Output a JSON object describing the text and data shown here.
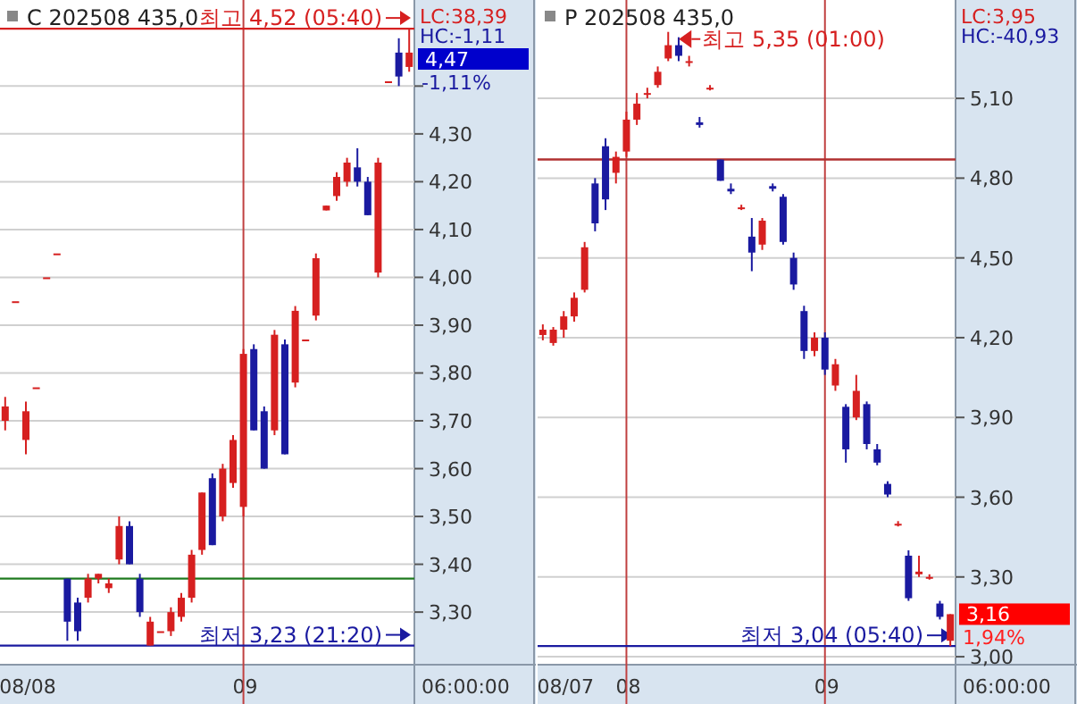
{
  "chart_data": [
    {
      "type": "candlestick",
      "title": "C 202508 435,0",
      "categories": [
        null,
        null,
        "08/08",
        null,
        null,
        null,
        null,
        null,
        null,
        null,
        null,
        null,
        null,
        null,
        null,
        null,
        null,
        null,
        null,
        null,
        null,
        null,
        null,
        "09",
        null,
        null,
        null,
        null,
        null,
        null,
        null,
        null,
        null,
        null,
        null,
        null,
        null,
        null,
        null,
        null
      ],
      "ohlc": [
        [
          3.7,
          3.75,
          3.68,
          3.73
        ],
        [
          3.95,
          3.95,
          3.95,
          3.95
        ],
        [
          3.66,
          3.74,
          3.63,
          3.72
        ],
        [
          3.77,
          3.77,
          3.77,
          3.77
        ],
        [
          4.0,
          4.0,
          4.0,
          4.0
        ],
        [
          4.05,
          4.05,
          4.05,
          4.05
        ],
        [
          3.37,
          3.37,
          3.24,
          3.28
        ],
        [
          3.32,
          3.33,
          3.24,
          3.26
        ],
        [
          3.33,
          3.38,
          3.32,
          3.37
        ],
        [
          3.37,
          3.38,
          3.36,
          3.38
        ],
        [
          3.35,
          3.37,
          3.34,
          3.36
        ],
        [
          3.41,
          3.5,
          3.4,
          3.48
        ],
        [
          3.48,
          3.49,
          3.4,
          3.4
        ],
        [
          3.37,
          3.38,
          3.29,
          3.3
        ],
        [
          3.23,
          3.29,
          3.23,
          3.28
        ],
        [
          3.26,
          3.26,
          3.26,
          3.26
        ],
        [
          3.26,
          3.31,
          3.25,
          3.3
        ],
        [
          3.29,
          3.34,
          3.28,
          3.33
        ],
        [
          3.33,
          3.43,
          3.32,
          3.42
        ],
        [
          3.43,
          3.55,
          3.42,
          3.55
        ],
        [
          3.58,
          3.59,
          3.44,
          3.44
        ],
        [
          3.5,
          3.61,
          3.49,
          3.6
        ],
        [
          3.57,
          3.67,
          3.56,
          3.66
        ],
        [
          3.52,
          3.85,
          3.5,
          3.84
        ],
        [
          3.85,
          3.86,
          3.68,
          3.68
        ],
        [
          3.72,
          3.73,
          3.6,
          3.6
        ],
        [
          3.68,
          3.89,
          3.67,
          3.88
        ],
        [
          3.86,
          3.87,
          3.63,
          3.63
        ],
        [
          3.78,
          3.94,
          3.77,
          3.93
        ],
        [
          3.87,
          3.87,
          3.87,
          3.87
        ],
        [
          3.92,
          4.05,
          3.91,
          4.04
        ],
        [
          4.14,
          4.15,
          4.14,
          4.15
        ],
        [
          4.17,
          4.22,
          4.16,
          4.21
        ],
        [
          4.2,
          4.25,
          4.19,
          4.24
        ],
        [
          4.23,
          4.27,
          4.19,
          4.2
        ],
        [
          4.2,
          4.21,
          4.13,
          4.13
        ],
        [
          4.01,
          4.25,
          4.0,
          4.24
        ],
        [
          4.41,
          4.41,
          4.41,
          4.41
        ],
        [
          4.47,
          4.5,
          4.4,
          4.42
        ],
        [
          4.44,
          4.52,
          4.43,
          4.47
        ]
      ],
      "ylim": [
        3.19,
        4.58
      ],
      "yticks": [
        {
          "value": 3.3,
          "label": "3,30"
        },
        {
          "value": 3.4,
          "label": "3,40"
        },
        {
          "value": 3.5,
          "label": "3,50"
        },
        {
          "value": 3.6,
          "label": "3,60"
        },
        {
          "value": 3.7,
          "label": "3,70"
        },
        {
          "value": 3.8,
          "label": "3,80"
        },
        {
          "value": 3.9,
          "label": "3,90"
        },
        {
          "value": 4.0,
          "label": "4,00"
        },
        {
          "value": 4.1,
          "label": "4,10"
        },
        {
          "value": 4.2,
          "label": "4,20"
        },
        {
          "value": 4.3,
          "label": "4,30"
        },
        {
          "value": 4.4,
          "label": null
        }
      ],
      "grid": "y",
      "ref_lines": [
        {
          "axis": "x",
          "value": "09",
          "color": "#c04040"
        },
        {
          "axis": "y",
          "value": 4.52,
          "label": "최고 4,52 (05:40)",
          "color": "#d62020"
        },
        {
          "axis": "y",
          "value": 3.37,
          "color": "#1f7a1f"
        },
        {
          "axis": "y",
          "value": 3.23,
          "label": "최저 3,23 (21:20)",
          "color": "#1a1aa0"
        }
      ],
      "annotations": [
        "LC:38,39",
        "HC:-1,11",
        "4,47",
        "-1,11%",
        "06:00:00"
      ]
    },
    {
      "type": "candlestick",
      "title": "P 202508 435,0",
      "categories": [
        null,
        null,
        "08/07",
        null,
        null,
        null,
        null,
        null,
        "08",
        null,
        null,
        null,
        null,
        null,
        null,
        null,
        null,
        null,
        null,
        null,
        null,
        null,
        null,
        null,
        null,
        null,
        null,
        "09",
        null,
        null,
        null,
        null,
        null,
        null,
        null,
        null,
        null,
        null,
        null,
        null
      ],
      "ohlc": [
        [
          4.21,
          4.25,
          4.19,
          4.23
        ],
        [
          4.18,
          4.24,
          4.17,
          4.23
        ],
        [
          4.23,
          4.3,
          4.2,
          4.28
        ],
        [
          4.28,
          4.37,
          4.26,
          4.35
        ],
        [
          4.38,
          4.56,
          4.37,
          4.54
        ],
        [
          4.78,
          4.8,
          4.6,
          4.63
        ],
        [
          4.92,
          4.95,
          4.68,
          4.72
        ],
        [
          4.82,
          4.9,
          4.78,
          4.88
        ],
        [
          4.9,
          5.05,
          4.88,
          5.02
        ],
        [
          5.02,
          5.12,
          5.0,
          5.08
        ],
        [
          5.12,
          5.14,
          5.1,
          5.12
        ],
        [
          5.15,
          5.22,
          5.14,
          5.2
        ],
        [
          5.25,
          5.35,
          5.24,
          5.3
        ],
        [
          5.3,
          5.33,
          5.24,
          5.26
        ],
        [
          5.24,
          5.26,
          5.22,
          5.24
        ],
        [
          5.01,
          5.03,
          4.99,
          5.0
        ],
        [
          5.14,
          5.15,
          5.13,
          5.14
        ],
        [
          4.87,
          4.87,
          4.79,
          4.79
        ],
        [
          4.76,
          4.78,
          4.74,
          4.75
        ],
        [
          4.69,
          4.7,
          4.68,
          4.69
        ],
        [
          4.58,
          4.65,
          4.45,
          4.52
        ],
        [
          4.55,
          4.65,
          4.53,
          4.64
        ],
        [
          4.77,
          4.78,
          4.75,
          4.76
        ],
        [
          4.73,
          4.74,
          4.55,
          4.56
        ],
        [
          4.5,
          4.52,
          4.38,
          4.4
        ],
        [
          4.3,
          4.32,
          4.12,
          4.15
        ],
        [
          4.15,
          4.22,
          4.13,
          4.2
        ],
        [
          4.2,
          4.22,
          4.06,
          4.08
        ],
        [
          4.02,
          4.12,
          4.0,
          4.1
        ],
        [
          3.94,
          3.95,
          3.73,
          3.78
        ],
        [
          3.9,
          4.06,
          3.89,
          4.0
        ],
        [
          3.95,
          3.96,
          3.78,
          3.8
        ],
        [
          3.78,
          3.8,
          3.72,
          3.73
        ],
        [
          3.65,
          3.66,
          3.6,
          3.61
        ],
        [
          3.5,
          3.51,
          3.49,
          3.5
        ],
        [
          3.38,
          3.4,
          3.21,
          3.22
        ],
        [
          3.31,
          3.38,
          3.3,
          3.32
        ],
        [
          3.3,
          3.31,
          3.29,
          3.3
        ],
        [
          3.2,
          3.21,
          3.14,
          3.15
        ],
        [
          3.06,
          3.16,
          3.04,
          3.16
        ]
      ],
      "ylim": [
        2.97,
        5.47
      ],
      "yticks": [
        {
          "value": 3.0,
          "label": "3,00"
        },
        {
          "value": 3.3,
          "label": "3,30"
        },
        {
          "value": 3.6,
          "label": "3,60"
        },
        {
          "value": 3.9,
          "label": "3,90"
        },
        {
          "value": 4.2,
          "label": "4,20"
        },
        {
          "value": 4.5,
          "label": "4,50"
        },
        {
          "value": 4.8,
          "label": "4,80"
        },
        {
          "value": 5.1,
          "label": "5,10"
        }
      ],
      "grid": "y",
      "ref_lines": [
        {
          "axis": "x",
          "value": "08",
          "color": "#c04040"
        },
        {
          "axis": "x",
          "value": "09",
          "color": "#c04040"
        },
        {
          "axis": "y",
          "value": 4.87,
          "color": "#b03030"
        },
        {
          "axis": "y",
          "value": 3.04,
          "label": "최저 3,04 (05:40)",
          "color": "#1a1aa0"
        }
      ],
      "annotations": [
        "LC:3,95",
        "HC:-40,93",
        "3,16",
        "1,94%",
        "06:00:00",
        "최고 5,35 (01:00)"
      ]
    }
  ]
}
